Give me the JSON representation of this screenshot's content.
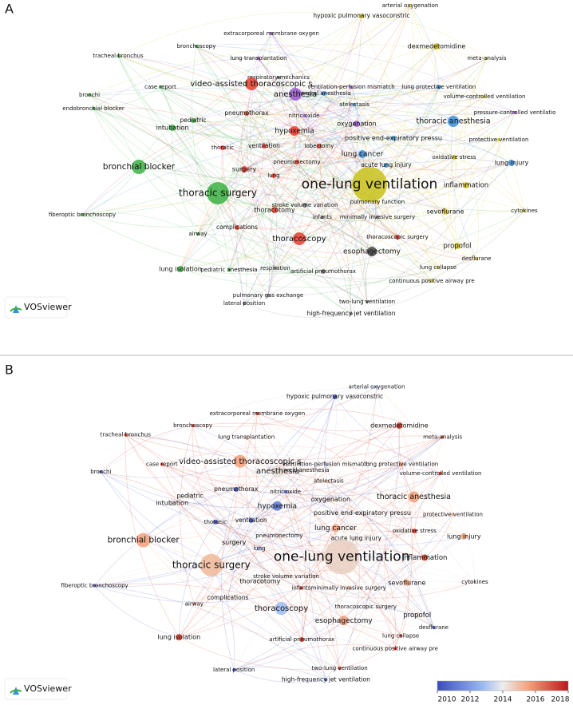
{
  "panels": [
    {
      "label": "A",
      "logo": "VOSviewer",
      "nodes": [
        {
          "label": "arterial oxygenation",
          "color": "#d9c81e"
        },
        {
          "label": "hypoxic pulmonary vasoconstric",
          "color": "#d9c81e"
        },
        {
          "label": "extracorporeal membrane oxygen",
          "color": "#9b59d0"
        },
        {
          "label": "bronchoscopy",
          "color": "#3cb043"
        },
        {
          "label": "tracheal bronchus",
          "color": "#3cb043"
        },
        {
          "label": "lung transplantation",
          "color": "#9b59d0"
        },
        {
          "label": "respiratory mechanics",
          "color": "#444444"
        },
        {
          "label": "dexmedetomidine",
          "color": "#d9c81e"
        },
        {
          "label": "meta-analysis",
          "color": "#d9c81e"
        },
        {
          "label": "ventilation-perfusion mismatch",
          "color": "#9b59d0"
        },
        {
          "label": "case report",
          "color": "#3cb043"
        },
        {
          "label": "video-assisted thoracoscopic s",
          "color": "#e8392c"
        },
        {
          "label": "lung protective ventilation",
          "color": "#3a8fd9"
        },
        {
          "label": "volume-controlled ventilation",
          "color": "#d9c81e"
        },
        {
          "label": "bronchi",
          "color": "#3cb043"
        },
        {
          "label": "general anesthesia",
          "color": "#3a8fd9"
        },
        {
          "label": "anesthesia",
          "color": "#9b59d0"
        },
        {
          "label": "atelectasis",
          "color": "#3a8fd9"
        },
        {
          "label": "pressure-controlled ventilatio",
          "color": "#9b59d0"
        },
        {
          "label": "endobronchial blocker",
          "color": "#3cb043"
        },
        {
          "label": "nitric oxide",
          "color": "#9b59d0"
        },
        {
          "label": "pneumothorax",
          "color": "#e8392c"
        },
        {
          "label": "pediatric",
          "color": "#3cb043"
        },
        {
          "label": "oxygenation",
          "color": "#9b59d0"
        },
        {
          "label": "thoracic anesthesia",
          "color": "#3a8fd9"
        },
        {
          "label": "intubation",
          "color": "#3cb043"
        },
        {
          "label": "hypoxemia",
          "color": "#e8392c"
        },
        {
          "label": "positive end-expiratory pressu",
          "color": "#3a8fd9"
        },
        {
          "label": "protective ventilation",
          "color": "#d9c81e"
        },
        {
          "label": "thoracic",
          "color": "#e8392c"
        },
        {
          "label": "ventilation",
          "color": "#e8392c"
        },
        {
          "label": "lobectomy",
          "color": "#e8392c"
        },
        {
          "label": "lung cancer",
          "color": "#3a8fd9"
        },
        {
          "label": "oxidative stress",
          "color": "#d9c81e"
        },
        {
          "label": "pneumonectomy",
          "color": "#e8392c"
        },
        {
          "label": "acute lung injury",
          "color": "#3a8fd9"
        },
        {
          "label": "bronchial blocker",
          "color": "#3cb043"
        },
        {
          "label": "surgery",
          "color": "#e8392c"
        },
        {
          "label": "lung",
          "color": "#e8392c"
        },
        {
          "label": "lung injury",
          "color": "#3a8fd9"
        },
        {
          "label": "inflammation",
          "color": "#d9c81e"
        },
        {
          "label": "one-lung ventilation",
          "color": "#c8c21a"
        },
        {
          "label": "thoracic surgery",
          "color": "#3cb043"
        },
        {
          "label": "pulmonary function",
          "color": "#d9c81e"
        },
        {
          "label": "cytokines",
          "color": "#d9c81e"
        },
        {
          "label": "stroke volume variation",
          "color": "#777777"
        },
        {
          "label": "infants",
          "color": "#777777"
        },
        {
          "label": "minimally invasive surgery",
          "color": "#777777"
        },
        {
          "label": "sevoflurane",
          "color": "#d9c81e"
        },
        {
          "label": "thoracotomy",
          "color": "#e8392c"
        },
        {
          "label": "fiberoptic bronchoscopy",
          "color": "#3cb043"
        },
        {
          "label": "complications",
          "color": "#e8392c"
        },
        {
          "label": "airway",
          "color": "#3cb043"
        },
        {
          "label": "propofol",
          "color": "#d9c81e"
        },
        {
          "label": "thoracoscopy",
          "color": "#e8392c"
        },
        {
          "label": "thoracoscopic surgery",
          "color": "#e8392c"
        },
        {
          "label": "esophagectomy",
          "color": "#444444"
        },
        {
          "label": "lung collapse",
          "color": "#d9c81e"
        },
        {
          "label": "desflurane",
          "color": "#d9c81e"
        },
        {
          "label": "lung isolation",
          "color": "#3cb043"
        },
        {
          "label": "pediatric anesthesia",
          "color": "#3cb043"
        },
        {
          "label": "respiration",
          "color": "#777777"
        },
        {
          "label": "artificial pneumothorax",
          "color": "#777777"
        },
        {
          "label": "continuous positive airway pre",
          "color": "#d9c81e"
        },
        {
          "label": "pulmonary gas exchange",
          "color": "#777777"
        },
        {
          "label": "two-lung ventilation",
          "color": "#777777"
        },
        {
          "label": "lateral position",
          "color": "#777777"
        },
        {
          "label": "high-frequency jet ventilation",
          "color": "#777777"
        }
      ]
    },
    {
      "label": "B",
      "logo": "VOSviewer",
      "nodes": [
        {
          "label": "arterial oxygenation",
          "color": "#9bbbf0"
        },
        {
          "label": "hypoxic pulmonary vasoconstric",
          "color": "#3b4cc0"
        },
        {
          "label": "extracorporeal membrane oxygen",
          "color": "#d7301f"
        },
        {
          "label": "bronchoscopy",
          "color": "#d7301f"
        },
        {
          "label": "tracheal bronchus",
          "color": "#d7301f"
        },
        {
          "label": "lung transplantation",
          "color": "#f4c6b0"
        },
        {
          "label": "dexmedetomidine",
          "color": "#d7301f"
        },
        {
          "label": "meta-analysis",
          "color": "#d7301f"
        },
        {
          "label": "ventilation-perfusion mismatch",
          "color": "#9bbbf0"
        },
        {
          "label": "case report",
          "color": "#d7301f"
        },
        {
          "label": "video-assisted thoracoscopic s",
          "color": "#f2a07a"
        },
        {
          "label": "lung protective ventilation",
          "color": "#f2a07a"
        },
        {
          "label": "volume-controlled ventilation",
          "color": "#d7301f"
        },
        {
          "label": "bronchi",
          "color": "#3b4cc0"
        },
        {
          "label": "general anesthesia",
          "color": "#e6dcd6"
        },
        {
          "label": "anesthesia",
          "color": "#e6dcd6"
        },
        {
          "label": "atelectasis",
          "color": "#f4c6b0"
        },
        {
          "label": "nitric oxide",
          "color": "#3b4cc0"
        },
        {
          "label": "pneumothorax",
          "color": "#3b4cc0"
        },
        {
          "label": "pediatric",
          "color": "#e6dcd6"
        },
        {
          "label": "oxygenation",
          "color": "#e6dcd6"
        },
        {
          "label": "thoracic anesthesia",
          "color": "#f2a07a"
        },
        {
          "label": "intubation",
          "color": "#e6dcd6"
        },
        {
          "label": "hypoxemia",
          "color": "#5a78d8"
        },
        {
          "label": "positive end-expiratory pressu",
          "color": "#e6dcd6"
        },
        {
          "label": "protective ventilation",
          "color": "#f2a07a"
        },
        {
          "label": "thoracic",
          "color": "#3b4cc0"
        },
        {
          "label": "ventilation",
          "color": "#3b4cc0"
        },
        {
          "label": "lung cancer",
          "color": "#f2a07a"
        },
        {
          "label": "oxidative stress",
          "color": "#d7301f"
        },
        {
          "label": "pneumonectomy",
          "color": "#e6dcd6"
        },
        {
          "label": "acute lung injury",
          "color": "#e6dcd6"
        },
        {
          "label": "bronchial blocker",
          "color": "#f2a07a"
        },
        {
          "label": "surgery",
          "color": "#e6dcd6"
        },
        {
          "label": "lung",
          "color": "#9bbbf0"
        },
        {
          "label": "lung injury",
          "color": "#f2a07a"
        },
        {
          "label": "inflammation",
          "color": "#d7301f"
        },
        {
          "label": "one-lung ventilation",
          "color": "#e8cfc0"
        },
        {
          "label": "thoracic surgery",
          "color": "#f0b898"
        },
        {
          "label": "cytokines",
          "color": "#e6dcd6"
        },
        {
          "label": "stroke volume variation",
          "color": "#e6dcd6"
        },
        {
          "label": "infants",
          "color": "#d7301f"
        },
        {
          "label": "minimally invasive surgery",
          "color": "#f2a07a"
        },
        {
          "label": "sevoflurane",
          "color": "#f2a07a"
        },
        {
          "label": "thoracotomy",
          "color": "#e6dcd6"
        },
        {
          "label": "fiberoptic bronchoscopy",
          "color": "#3b4cc0"
        },
        {
          "label": "complications",
          "color": "#e6dcd6"
        },
        {
          "label": "airway",
          "color": "#f2a07a"
        },
        {
          "label": "propofol",
          "color": "#e6dcd6"
        },
        {
          "label": "thoracoscopy",
          "color": "#9bbbf0"
        },
        {
          "label": "thoracoscopic surgery",
          "color": "#e6dcd6"
        },
        {
          "label": "esophagectomy",
          "color": "#f2a07a"
        },
        {
          "label": "lung collapse",
          "color": "#d7301f"
        },
        {
          "label": "desflurane",
          "color": "#3b4cc0"
        },
        {
          "label": "lung isolation",
          "color": "#d7301f"
        },
        {
          "label": "artificial pneumothorax",
          "color": "#d7301f"
        },
        {
          "label": "continuous positive airway pre",
          "color": "#d7301f"
        },
        {
          "label": "two-lung ventilation",
          "color": "#d7301f"
        },
        {
          "label": "lateral position",
          "color": "#3b4cc0"
        },
        {
          "label": "high-frequency jet ventilation",
          "color": "#3b4cc0"
        }
      ],
      "colorbar": {
        "range": [
          2010,
          2018
        ],
        "ticks": [
          2010,
          2012,
          2014,
          2016,
          2018
        ]
      }
    }
  ]
}
